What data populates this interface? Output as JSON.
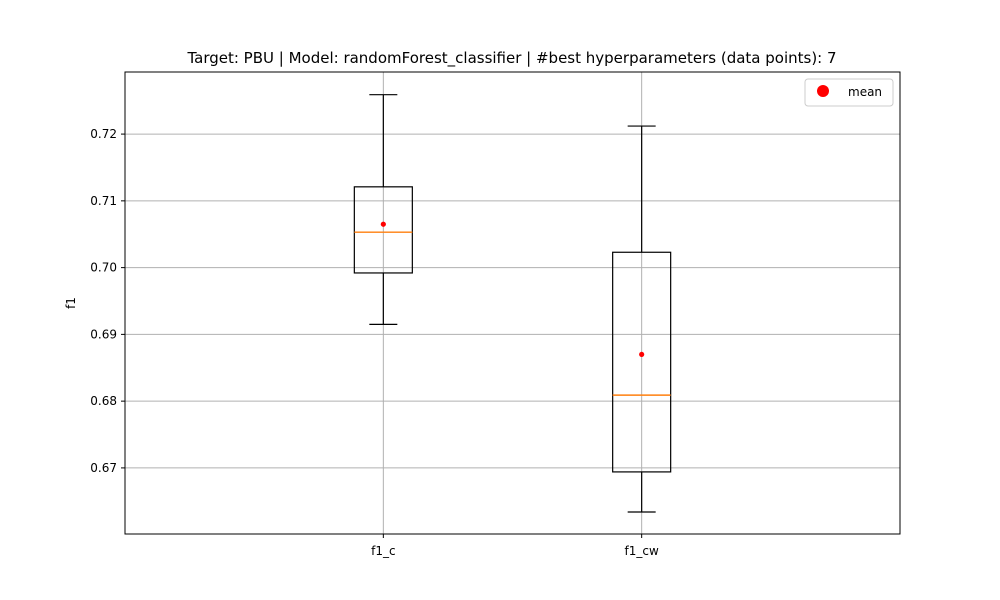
{
  "chart_data": {
    "type": "box",
    "title": "Target: PBU | Model: randomForest_classifier | #best hyperparameters (data points): 7",
    "xlabel": "",
    "ylabel": "f1",
    "categories": [
      "f1_c",
      "f1_cw"
    ],
    "ylim": [
      0.6601,
      0.7293
    ],
    "yticks": [
      0.67,
      0.68,
      0.69,
      0.7,
      0.71,
      0.72
    ],
    "ytick_labels": [
      "0.67",
      "0.68",
      "0.69",
      "0.70",
      "0.71",
      "0.72"
    ],
    "grid": true,
    "legend": {
      "position": "top-right",
      "entries": [
        "mean"
      ]
    },
    "boxes": [
      {
        "category": "f1_c",
        "whisker_low": 0.6915,
        "q1": 0.6992,
        "median": 0.7053,
        "q3": 0.7121,
        "whisker_high": 0.7259,
        "mean": 0.7065
      },
      {
        "category": "f1_cw",
        "whisker_low": 0.6634,
        "q1": 0.6694,
        "median": 0.6809,
        "q3": 0.7023,
        "whisker_high": 0.7212,
        "mean": 0.687
      }
    ],
    "colors": {
      "box": "#000000",
      "median": "#ff7f0e",
      "mean": "#ff0000",
      "grid": "#b0b0b0"
    }
  }
}
